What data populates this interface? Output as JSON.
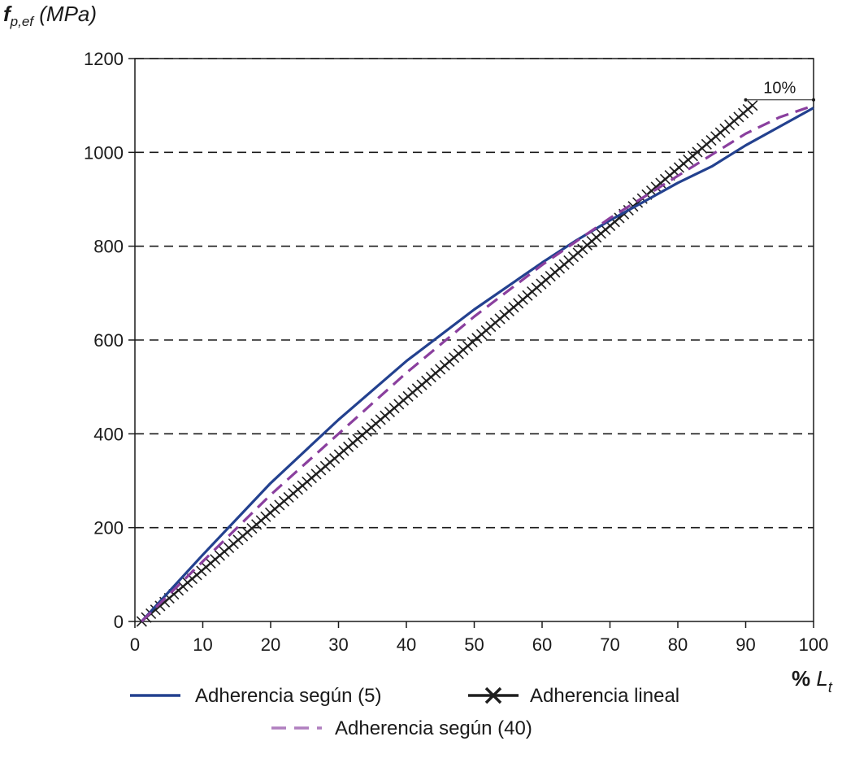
{
  "chart_data": {
    "type": "line",
    "title": "",
    "ylabel": {
      "main": "f",
      "sub": "p,ef",
      "unit": " (MPa)"
    },
    "xlabel": {
      "main": "% ",
      "var": "L",
      "sub": "t"
    },
    "xlim": [
      0,
      100
    ],
    "ylim": [
      0,
      1200
    ],
    "xticks": [
      0,
      10,
      20,
      30,
      40,
      50,
      60,
      70,
      80,
      90,
      100
    ],
    "yticks": [
      0,
      200,
      400,
      600,
      800,
      1000,
      1200
    ],
    "grid": "horizontal-dashed",
    "annotation": {
      "text": "10%",
      "x_from": 90,
      "x_to": 100,
      "y": 1112
    },
    "series": [
      {
        "name": "Adherencia según (40)",
        "color": "#8a3f9e",
        "style": "dashed",
        "x": [
          1,
          10,
          20,
          30,
          40,
          50,
          60,
          65,
          70,
          75,
          80,
          85,
          90,
          95,
          100
        ],
        "y": [
          0,
          128,
          270,
          400,
          530,
          650,
          760,
          810,
          860,
          905,
          950,
          995,
          1040,
          1075,
          1100
        ]
      },
      {
        "name": "Adherencia según (5)",
        "color": "#23418f",
        "style": "solid",
        "x": [
          1,
          10,
          20,
          30,
          40,
          50,
          60,
          65,
          70,
          75,
          80,
          85,
          90,
          95,
          100
        ],
        "y": [
          0,
          142,
          295,
          430,
          555,
          665,
          765,
          812,
          855,
          895,
          935,
          970,
          1015,
          1055,
          1095
        ]
      },
      {
        "name": "Adherencia lineal",
        "color": "#1f1f1f",
        "style": "cross-markers",
        "x": [
          1,
          91
        ],
        "y": [
          0,
          1100
        ]
      }
    ],
    "legend": [
      {
        "label": "Adherencia según (40)",
        "series": 0
      },
      {
        "label": "Adherencia según (5)",
        "series": 1
      },
      {
        "label": "Adherencia lineal",
        "series": 2
      }
    ]
  }
}
